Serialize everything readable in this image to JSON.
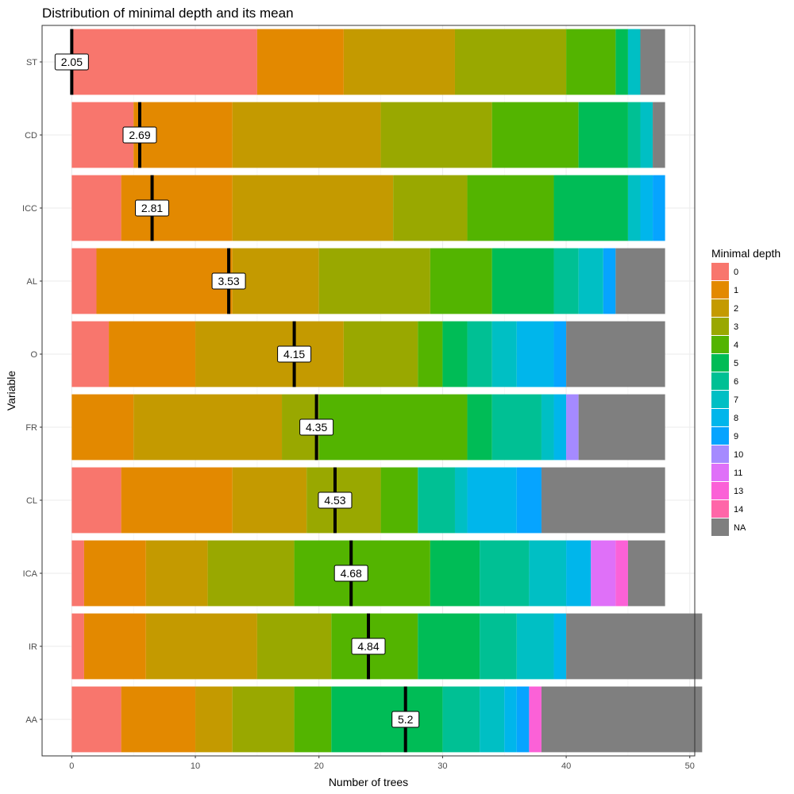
{
  "chart_data": {
    "type": "bar",
    "orientation": "horizontal",
    "stacked": true,
    "title": "Distribution of minimal depth and its mean",
    "xlabel": "Number of trees",
    "ylabel": "Variable",
    "xlim": [
      -2.4,
      50.4
    ],
    "xticks": [
      0,
      10,
      20,
      30,
      40,
      50
    ],
    "grid": true,
    "legend": {
      "title": "Minimal depth",
      "placement": "right",
      "entries": [
        {
          "key": "0",
          "label": "0",
          "color": "#F8766D"
        },
        {
          "key": "1",
          "label": "1",
          "color": "#E38900"
        },
        {
          "key": "2",
          "label": "2",
          "color": "#C49A00"
        },
        {
          "key": "3",
          "label": "3",
          "color": "#99A800"
        },
        {
          "key": "4",
          "label": "4",
          "color": "#53B400"
        },
        {
          "key": "5",
          "label": "5",
          "color": "#00BC56"
        },
        {
          "key": "6",
          "label": "6",
          "color": "#00C094"
        },
        {
          "key": "7",
          "label": "7",
          "color": "#00BFC4"
        },
        {
          "key": "8",
          "label": "8",
          "color": "#00B6EB"
        },
        {
          "key": "9",
          "label": "9",
          "color": "#06A4FF"
        },
        {
          "key": "10",
          "label": "10",
          "color": "#A58AFF"
        },
        {
          "key": "11",
          "label": "11",
          "color": "#DF70F8"
        },
        {
          "key": "13",
          "label": "13",
          "color": "#FB61D7"
        },
        {
          "key": "14",
          "label": "14",
          "color": "#FF66A8"
        },
        {
          "key": "NA",
          "label": "NA",
          "color": "#7F7F7F"
        }
      ]
    },
    "categories": [
      "ST",
      "CD",
      "ICC",
      "AL",
      "O",
      "FR",
      "CL",
      "ICA",
      "IR",
      "AA"
    ],
    "rows": [
      {
        "variable": "ST",
        "mean": 2.05,
        "mean_label": "2.05",
        "mean_x": 0,
        "segments": [
          [
            "0",
            15
          ],
          [
            "1",
            7
          ],
          [
            "2",
            9
          ],
          [
            "3",
            9
          ],
          [
            "4",
            4
          ],
          [
            "5",
            1
          ],
          [
            "7",
            1
          ],
          [
            "NA",
            2
          ]
        ]
      },
      {
        "variable": "CD",
        "mean": 2.69,
        "mean_label": "2.69",
        "mean_x": 5.5,
        "segments": [
          [
            "0",
            5
          ],
          [
            "1",
            8
          ],
          [
            "2",
            12
          ],
          [
            "3",
            9
          ],
          [
            "4",
            7
          ],
          [
            "5",
            4
          ],
          [
            "6",
            1
          ],
          [
            "7",
            1
          ],
          [
            "NA",
            1
          ]
        ]
      },
      {
        "variable": "ICC",
        "mean": 2.81,
        "mean_label": "2.81",
        "mean_x": 6.5,
        "segments": [
          [
            "0",
            4
          ],
          [
            "1",
            9
          ],
          [
            "2",
            13
          ],
          [
            "3",
            6
          ],
          [
            "4",
            7
          ],
          [
            "5",
            6
          ],
          [
            "7",
            1
          ],
          [
            "8",
            1
          ],
          [
            "9",
            1
          ]
        ]
      },
      {
        "variable": "AL",
        "mean": 3.53,
        "mean_label": "3.53",
        "mean_x": 12.7,
        "segments": [
          [
            "0",
            2
          ],
          [
            "1",
            11
          ],
          [
            "2",
            7
          ],
          [
            "3",
            9
          ],
          [
            "4",
            5
          ],
          [
            "5",
            5
          ],
          [
            "6",
            2
          ],
          [
            "7",
            2
          ],
          [
            "9",
            1
          ],
          [
            "NA",
            4
          ]
        ]
      },
      {
        "variable": "O",
        "mean": 4.15,
        "mean_label": "4.15",
        "mean_x": 18,
        "segments": [
          [
            "0",
            3
          ],
          [
            "1",
            7
          ],
          [
            "2",
            12
          ],
          [
            "3",
            6
          ],
          [
            "4",
            2
          ],
          [
            "5",
            2
          ],
          [
            "6",
            2
          ],
          [
            "7",
            2
          ],
          [
            "8",
            3
          ],
          [
            "9",
            1
          ],
          [
            "NA",
            8
          ]
        ]
      },
      {
        "variable": "FR",
        "mean": 4.35,
        "mean_label": "4.35",
        "mean_x": 19.8,
        "segments": [
          [
            "1",
            5
          ],
          [
            "2",
            12
          ],
          [
            "3",
            3
          ],
          [
            "4",
            12
          ],
          [
            "5",
            2
          ],
          [
            "6",
            4
          ],
          [
            "7",
            1
          ],
          [
            "8",
            1
          ],
          [
            "10",
            1
          ],
          [
            "NA",
            7
          ]
        ]
      },
      {
        "variable": "CL",
        "mean": 4.53,
        "mean_label": "4.53",
        "mean_x": 21.3,
        "segments": [
          [
            "0",
            4
          ],
          [
            "1",
            9
          ],
          [
            "2",
            6
          ],
          [
            "3",
            6
          ],
          [
            "4",
            3
          ],
          [
            "6",
            3
          ],
          [
            "7",
            1
          ],
          [
            "8",
            4
          ],
          [
            "9",
            2
          ],
          [
            "NA",
            10
          ]
        ]
      },
      {
        "variable": "ICA",
        "mean": 4.68,
        "mean_label": "4.68",
        "mean_x": 22.6,
        "segments": [
          [
            "0",
            1
          ],
          [
            "1",
            5
          ],
          [
            "2",
            5
          ],
          [
            "3",
            7
          ],
          [
            "4",
            11
          ],
          [
            "5",
            4
          ],
          [
            "6",
            4
          ],
          [
            "7",
            3
          ],
          [
            "8",
            2
          ],
          [
            "11",
            2
          ],
          [
            "13",
            1
          ],
          [
            "NA",
            3
          ]
        ]
      },
      {
        "variable": "IR",
        "mean": 4.84,
        "mean_label": "4.84",
        "mean_x": 24,
        "segments": [
          [
            "0",
            1
          ],
          [
            "1",
            5
          ],
          [
            "2",
            9
          ],
          [
            "3",
            6
          ],
          [
            "4",
            7
          ],
          [
            "5",
            5
          ],
          [
            "6",
            3
          ],
          [
            "7",
            3
          ],
          [
            "8",
            1
          ],
          [
            "NA",
            11
          ]
        ]
      },
      {
        "variable": "AA",
        "mean": 5.2,
        "mean_label": "5.2",
        "mean_x": 27,
        "segments": [
          [
            "0",
            4
          ],
          [
            "1",
            6
          ],
          [
            "2",
            3
          ],
          [
            "3",
            5
          ],
          [
            "4",
            3
          ],
          [
            "5",
            9
          ],
          [
            "6",
            3
          ],
          [
            "7",
            2
          ],
          [
            "8",
            1
          ],
          [
            "9",
            1
          ],
          [
            "13",
            1
          ],
          [
            "NA",
            13
          ]
        ]
      }
    ]
  }
}
